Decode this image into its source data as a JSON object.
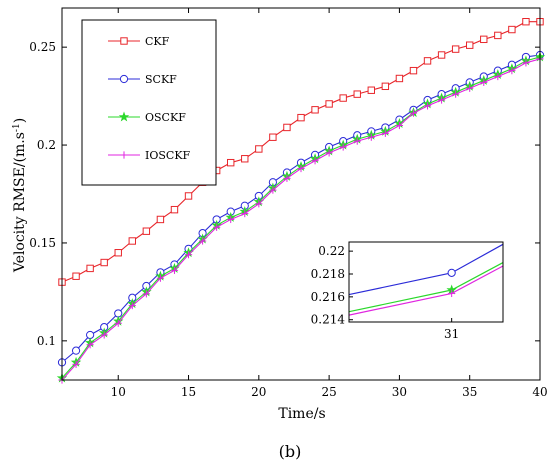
{
  "chart_data": {
    "type": "line",
    "xlabel": "Time/s",
    "ylabel": "Velocity RMSE/(m.s",
    "ylabel_sup": "-1",
    "ylabel_tail": ")",
    "xlim": [
      6,
      40
    ],
    "ylim": [
      0.08,
      0.27
    ],
    "xticks": [
      10,
      15,
      20,
      25,
      30,
      35,
      40
    ],
    "yticks": [
      0.1,
      0.15,
      0.2,
      0.25
    ],
    "x": [
      6,
      7,
      8,
      9,
      10,
      11,
      12,
      13,
      14,
      15,
      16,
      17,
      18,
      19,
      20,
      21,
      22,
      23,
      24,
      25,
      26,
      27,
      28,
      29,
      30,
      31,
      32,
      33,
      34,
      35,
      36,
      37,
      38,
      39,
      40
    ],
    "series": [
      {
        "name": "CKF",
        "color": "#e8262b",
        "marker": "square",
        "values": [
          0.13,
          0.133,
          0.137,
          0.14,
          0.145,
          0.151,
          0.156,
          0.162,
          0.167,
          0.174,
          0.181,
          0.187,
          0.191,
          0.193,
          0.198,
          0.204,
          0.209,
          0.214,
          0.218,
          0.221,
          0.224,
          0.226,
          0.228,
          0.23,
          0.234,
          0.238,
          0.243,
          0.246,
          0.249,
          0.251,
          0.254,
          0.256,
          0.259,
          0.263,
          0.263
        ]
      },
      {
        "name": "SCKF",
        "color": "#2b2bd8",
        "marker": "circle",
        "values": [
          0.089,
          0.095,
          0.103,
          0.107,
          0.114,
          0.122,
          0.128,
          0.135,
          0.139,
          0.147,
          0.155,
          0.162,
          0.166,
          0.169,
          0.174,
          0.181,
          0.186,
          0.191,
          0.195,
          0.199,
          0.202,
          0.205,
          0.207,
          0.209,
          0.213,
          0.218,
          0.223,
          0.226,
          0.229,
          0.232,
          0.235,
          0.238,
          0.241,
          0.245,
          0.246
        ]
      },
      {
        "name": "OSCKF",
        "color": "#2bd82b",
        "marker": "star",
        "values": [
          0.081,
          0.089,
          0.099,
          0.104,
          0.11,
          0.119,
          0.125,
          0.133,
          0.137,
          0.145,
          0.152,
          0.159,
          0.163,
          0.166,
          0.171,
          0.178,
          0.184,
          0.189,
          0.193,
          0.197,
          0.2,
          0.203,
          0.205,
          0.207,
          0.211,
          0.2166,
          0.221,
          0.224,
          0.227,
          0.23,
          0.233,
          0.236,
          0.239,
          0.243,
          0.245
        ]
      },
      {
        "name": "IOSCKF",
        "color": "#e026e0",
        "marker": "plus",
        "values": [
          0.08,
          0.088,
          0.098,
          0.103,
          0.109,
          0.118,
          0.124,
          0.132,
          0.136,
          0.144,
          0.151,
          0.158,
          0.162,
          0.165,
          0.17,
          0.177,
          0.183,
          0.188,
          0.192,
          0.196,
          0.199,
          0.202,
          0.204,
          0.206,
          0.21,
          0.2163,
          0.22,
          0.223,
          0.226,
          0.229,
          0.232,
          0.235,
          0.238,
          0.242,
          0.244
        ]
      }
    ],
    "legend_position": "top-left",
    "inset": {
      "xlim": [
        29,
        32
      ],
      "ylim": [
        0.2138,
        0.2208
      ],
      "xticks": [
        31
      ],
      "yticks": [
        0.214,
        0.216,
        0.218,
        0.22
      ],
      "xtick_labels": [
        "31"
      ],
      "ytick_labels": [
        "0.214",
        "0.216",
        "0.218",
        "0.22"
      ],
      "x": [
        29,
        31,
        32
      ],
      "series": [
        {
          "name": "SCKF",
          "color": "#2b2bd8",
          "values": [
            0.2162,
            0.2181,
            0.2206
          ],
          "marker_at": 31
        },
        {
          "name": "OSCKF",
          "color": "#2bd82b",
          "values": [
            0.2147,
            0.2166,
            0.219
          ],
          "marker_at": 31
        },
        {
          "name": "IOSCKF",
          "color": "#e026e0",
          "values": [
            0.2144,
            0.2163,
            0.2187
          ],
          "marker_at": 31
        }
      ]
    }
  },
  "caption": "(b)"
}
